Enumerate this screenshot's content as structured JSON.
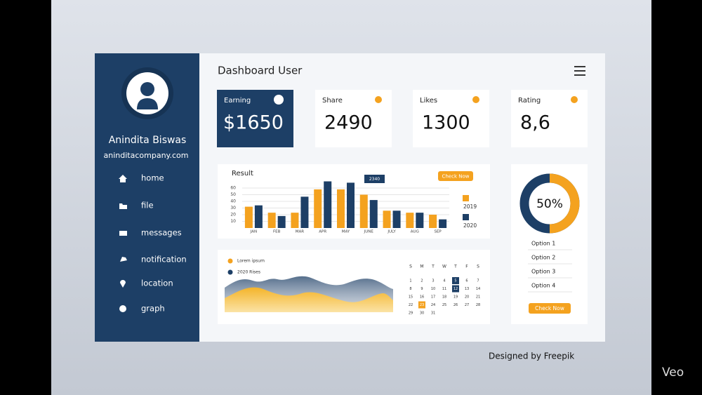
{
  "profile": {
    "name": "Anindita Biswas",
    "email": "aninditacompany.com"
  },
  "menu": [
    "home",
    "file",
    "messages",
    "notification",
    "location",
    "graph"
  ],
  "header": {
    "title": "Dashboard User"
  },
  "stats": [
    {
      "label": "Earning",
      "value": "$1650"
    },
    {
      "label": "Share",
      "value": "2490"
    },
    {
      "label": "Likes",
      "value": "1300"
    },
    {
      "label": "Rating",
      "value": "8,6"
    }
  ],
  "result_chart": {
    "type": "bar",
    "title": "Result",
    "button": "Check Now",
    "annotation": "2340",
    "categories": [
      "JAN",
      "FEB",
      "MAR",
      "APR",
      "MAY",
      "JUNE",
      "JULY",
      "AUG",
      "SEP"
    ],
    "series": [
      {
        "name": "2019",
        "color": "#f4a21f",
        "values": [
          32,
          23,
          23,
          58,
          58,
          50,
          26,
          23,
          20
        ]
      },
      {
        "name": "2020",
        "color": "#1d3f66",
        "values": [
          34,
          18,
          47,
          70,
          68,
          42,
          26,
          23,
          13
        ]
      }
    ],
    "ylim": [
      0,
      70
    ],
    "yticks": [
      10,
      20,
      30,
      40,
      50,
      60
    ],
    "grid": true
  },
  "area_legend": [
    "Lorem ipsum",
    "2020 Rises"
  ],
  "calendar": {
    "weekdays": [
      "S",
      "M",
      "T",
      "W",
      "T",
      "F",
      "S"
    ],
    "days": [
      "1",
      "2",
      "3",
      "4",
      "5",
      "6",
      "7",
      "8",
      "9",
      "10",
      "11",
      "12",
      "13",
      "14",
      "15",
      "16",
      "17",
      "18",
      "19",
      "20",
      "21",
      "22",
      "23",
      "24",
      "25",
      "26",
      "27",
      "28",
      "29",
      "30",
      "31"
    ]
  },
  "donut": {
    "values": [
      50
    ],
    "value_labels": [
      "50%"
    ],
    "color": "#f4a21f",
    "rest_color": "#1d3f66"
  },
  "options": [
    "Option 1",
    "Option 2",
    "Option 3",
    "Option 4"
  ],
  "options_button": "Check Now",
  "footer": "Designed by Freepik",
  "watermark": "Veo"
}
